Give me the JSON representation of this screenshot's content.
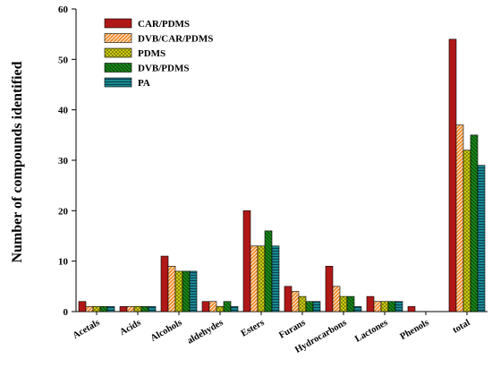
{
  "chart_data": {
    "type": "bar",
    "title": "",
    "xlabel": "",
    "ylabel": "Number of compounds identified",
    "ylim": [
      0,
      60
    ],
    "yticks": [
      0,
      10,
      20,
      30,
      40,
      50,
      60
    ],
    "grid": false,
    "legend_position": "top-left",
    "categories": [
      "Acetals",
      "Acids",
      "Alcohols",
      "aldehydes",
      "Esters",
      "Furans",
      "Hydrocarbons",
      "Lactones",
      "Phenols",
      "total"
    ],
    "series": [
      {
        "name": "CAR/PDMS",
        "values": [
          2,
          1,
          11,
          2,
          20,
          5,
          9,
          3,
          1,
          54
        ],
        "color": "#b01818",
        "pattern": "solid"
      },
      {
        "name": "DVB/CAR/PDMS",
        "values": [
          1,
          1,
          9,
          2,
          13,
          4,
          5,
          2,
          0,
          37
        ],
        "color": "#f08a2a",
        "pattern": "diagonal-hatch"
      },
      {
        "name": "PDMS",
        "values": [
          1,
          1,
          8,
          1,
          13,
          3,
          3,
          2,
          0,
          32
        ],
        "color": "#d8d818",
        "pattern": "crosshatch"
      },
      {
        "name": "DVB/PDMS",
        "values": [
          1,
          1,
          8,
          2,
          16,
          2,
          3,
          2,
          0,
          35
        ],
        "color": "#1a8a1a",
        "pattern": "diagonal-hatch"
      },
      {
        "name": "PA",
        "values": [
          1,
          1,
          8,
          1,
          13,
          2,
          1,
          2,
          0,
          29
        ],
        "color": "#1a8a8a",
        "pattern": "horizontal-lines"
      }
    ]
  }
}
